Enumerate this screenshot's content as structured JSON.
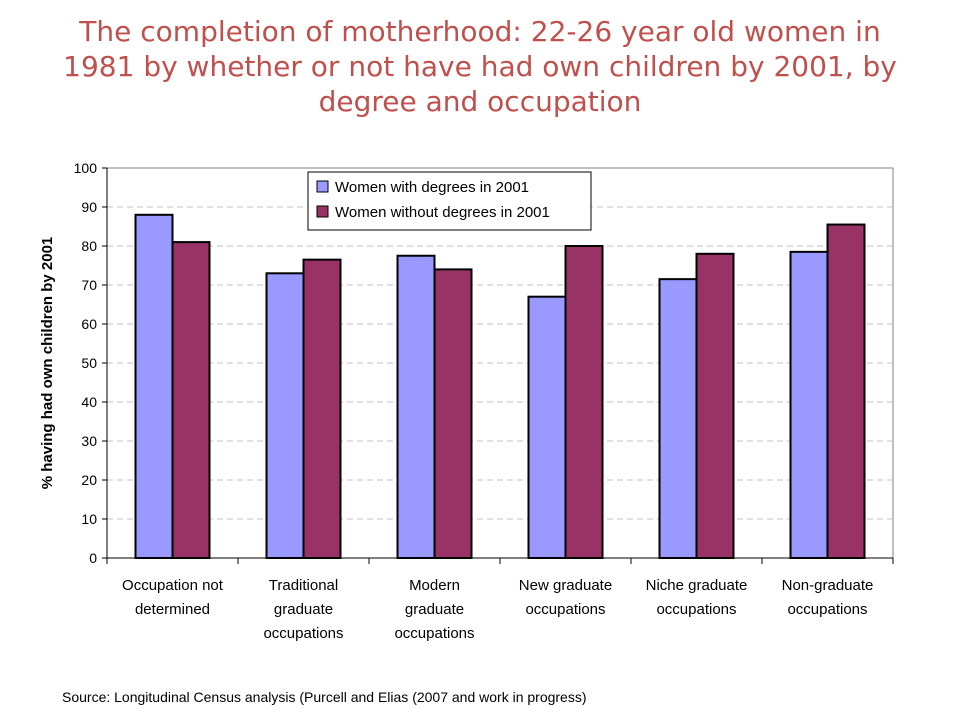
{
  "slide": {
    "title": "The completion of motherhood: 22-26 year old women in 1981 by whether or not have had own children by 2001, by degree and occupation",
    "source": "Source: Longitudinal Census analysis (Purcell and Elias (2007 and work in progress)"
  },
  "colors": {
    "title": "#c0504d",
    "series1": "#9999ff",
    "series2": "#993366",
    "grid": "#c0c0c0"
  },
  "chart_data": {
    "type": "bar",
    "title": "",
    "xlabel": "",
    "ylabel": "% having had own children by 2001",
    "ylim": [
      0,
      100
    ],
    "yticks": [
      "0",
      "10",
      "20",
      "30",
      "40",
      "50",
      "60",
      "70",
      "80",
      "90",
      "100"
    ],
    "grid": "horizontal dashed",
    "legend_position": "top-left inside",
    "categories": [
      [
        "Occupation not",
        "determined"
      ],
      [
        "Traditional",
        "graduate",
        "occupations"
      ],
      [
        "Modern",
        "graduate",
        "occupations"
      ],
      [
        "New graduate",
        "occupations"
      ],
      [
        "Niche graduate",
        "occupations"
      ],
      [
        "Non-graduate",
        "occupations"
      ]
    ],
    "series": [
      {
        "name": "Women with degrees in 2001",
        "color": "#9999ff",
        "values": [
          88,
          73,
          77.5,
          67,
          71.5,
          78.5
        ]
      },
      {
        "name": "Women without degrees in 2001",
        "color": "#993366",
        "values": [
          81,
          76.5,
          74,
          80,
          78,
          85.5
        ]
      }
    ]
  }
}
